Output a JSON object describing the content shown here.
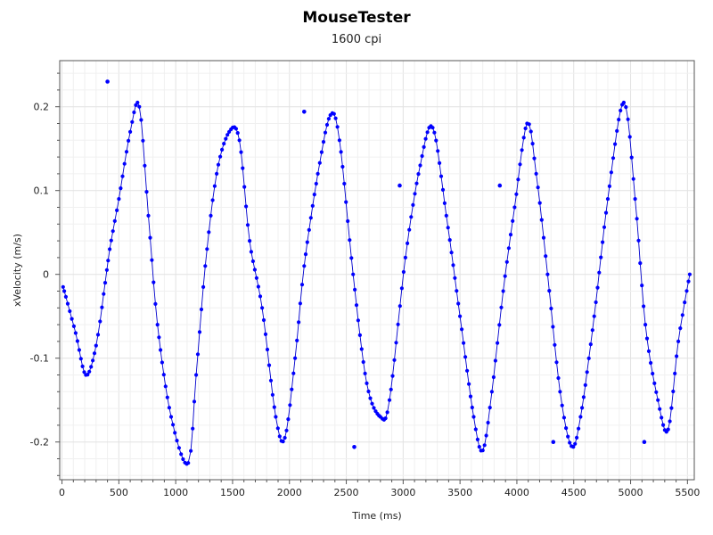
{
  "chart_data": {
    "type": "scatter",
    "title": "MouseTester",
    "subtitle": "1600 cpi",
    "xlabel": "Time (ms)",
    "ylabel": "xVelocity (m/s)",
    "xlim": [
      -20,
      5560
    ],
    "ylim": [
      -0.245,
      0.255
    ],
    "xticks": [
      0,
      500,
      1000,
      1500,
      2000,
      2500,
      3000,
      3500,
      4000,
      4500,
      5000,
      5500
    ],
    "yticks": [
      -0.2,
      -0.1,
      0,
      0.1,
      0.2
    ],
    "ytick_labels": [
      "-0.2",
      "-0.1",
      "0",
      "0.1",
      "0.2"
    ],
    "grid": true,
    "legend": "none",
    "point_color": "#0000ff",
    "line_color": "#0000cc",
    "curve_keypoints": [
      [
        10,
        -0.015
      ],
      [
        120,
        -0.07
      ],
      [
        210,
        -0.12
      ],
      [
        300,
        -0.085
      ],
      [
        380,
        -0.01
      ],
      [
        420,
        0.03
      ],
      [
        500,
        0.09
      ],
      [
        600,
        0.17
      ],
      [
        680,
        0.2
      ],
      [
        760,
        0.07
      ],
      [
        840,
        -0.06
      ],
      [
        960,
        -0.17
      ],
      [
        1110,
        -0.225
      ],
      [
        1180,
        -0.12
      ],
      [
        1260,
        0.01
      ],
      [
        1360,
        0.12
      ],
      [
        1470,
        0.17
      ],
      [
        1560,
        0.16
      ],
      [
        1650,
        0.04
      ],
      [
        1760,
        -0.04
      ],
      [
        1880,
        -0.17
      ],
      [
        1960,
        -0.195
      ],
      [
        2050,
        -0.1
      ],
      [
        2130,
        0.01
      ],
      [
        2250,
        0.12
      ],
      [
        2360,
        0.19
      ],
      [
        2440,
        0.16
      ],
      [
        2560,
        0.0
      ],
      [
        2680,
        -0.13
      ],
      [
        2800,
        -0.17
      ],
      [
        2880,
        -0.15
      ],
      [
        3020,
        0.02
      ],
      [
        3150,
        0.13
      ],
      [
        3260,
        0.175
      ],
      [
        3380,
        0.07
      ],
      [
        3500,
        -0.05
      ],
      [
        3620,
        -0.17
      ],
      [
        3700,
        -0.21
      ],
      [
        3780,
        -0.14
      ],
      [
        3880,
        -0.02
      ],
      [
        3980,
        0.08
      ],
      [
        4090,
        0.18
      ],
      [
        4170,
        0.12
      ],
      [
        4270,
        -0.0
      ],
      [
        4380,
        -0.14
      ],
      [
        4480,
        -0.205
      ],
      [
        4560,
        -0.17
      ],
      [
        4680,
        -0.05
      ],
      [
        4800,
        0.09
      ],
      [
        4940,
        0.205
      ],
      [
        5040,
        0.09
      ],
      [
        5130,
        -0.06
      ],
      [
        5240,
        -0.15
      ],
      [
        5330,
        -0.185
      ],
      [
        5420,
        -0.08
      ],
      [
        5520,
        0.0
      ]
    ],
    "outliers": [
      [
        400,
        0.23
      ],
      [
        2130,
        0.194
      ],
      [
        2570,
        -0.206
      ],
      [
        2970,
        0.106
      ],
      [
        3850,
        0.106
      ],
      [
        4320,
        -0.2
      ],
      [
        5120,
        -0.2
      ]
    ]
  }
}
